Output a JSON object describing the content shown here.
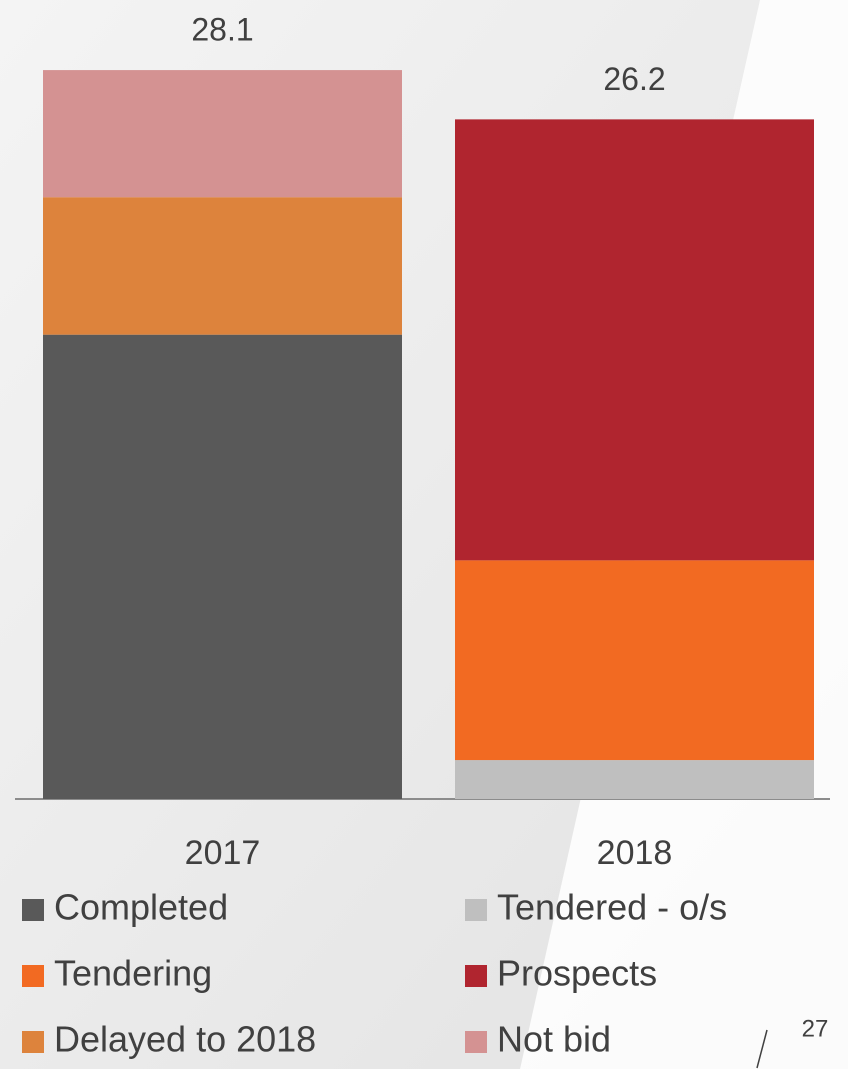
{
  "chart_data": {
    "type": "stacked_bar",
    "categories": [
      "2017",
      "2018"
    ],
    "series": [
      {
        "name": "Completed",
        "color": "#595959",
        "values": [
          17.9,
          null
        ]
      },
      {
        "name": "Tendered - o/s",
        "color": "#bfbfbf",
        "values": [
          null,
          1.5
        ]
      },
      {
        "name": "Tendering",
        "color": "#f26a22",
        "values": [
          null,
          7.7
        ]
      },
      {
        "name": "Prospects",
        "color": "#b0252f",
        "values": [
          null,
          17.0
        ]
      },
      {
        "name": "Delayed to 2018",
        "color": "#dd833c",
        "values": [
          5.3,
          null
        ]
      },
      {
        "name": "Not bid",
        "color": "#d49292",
        "values": [
          4.9,
          null
        ]
      }
    ],
    "totals": [
      28.1,
      26.2
    ]
  },
  "page_number": "27"
}
